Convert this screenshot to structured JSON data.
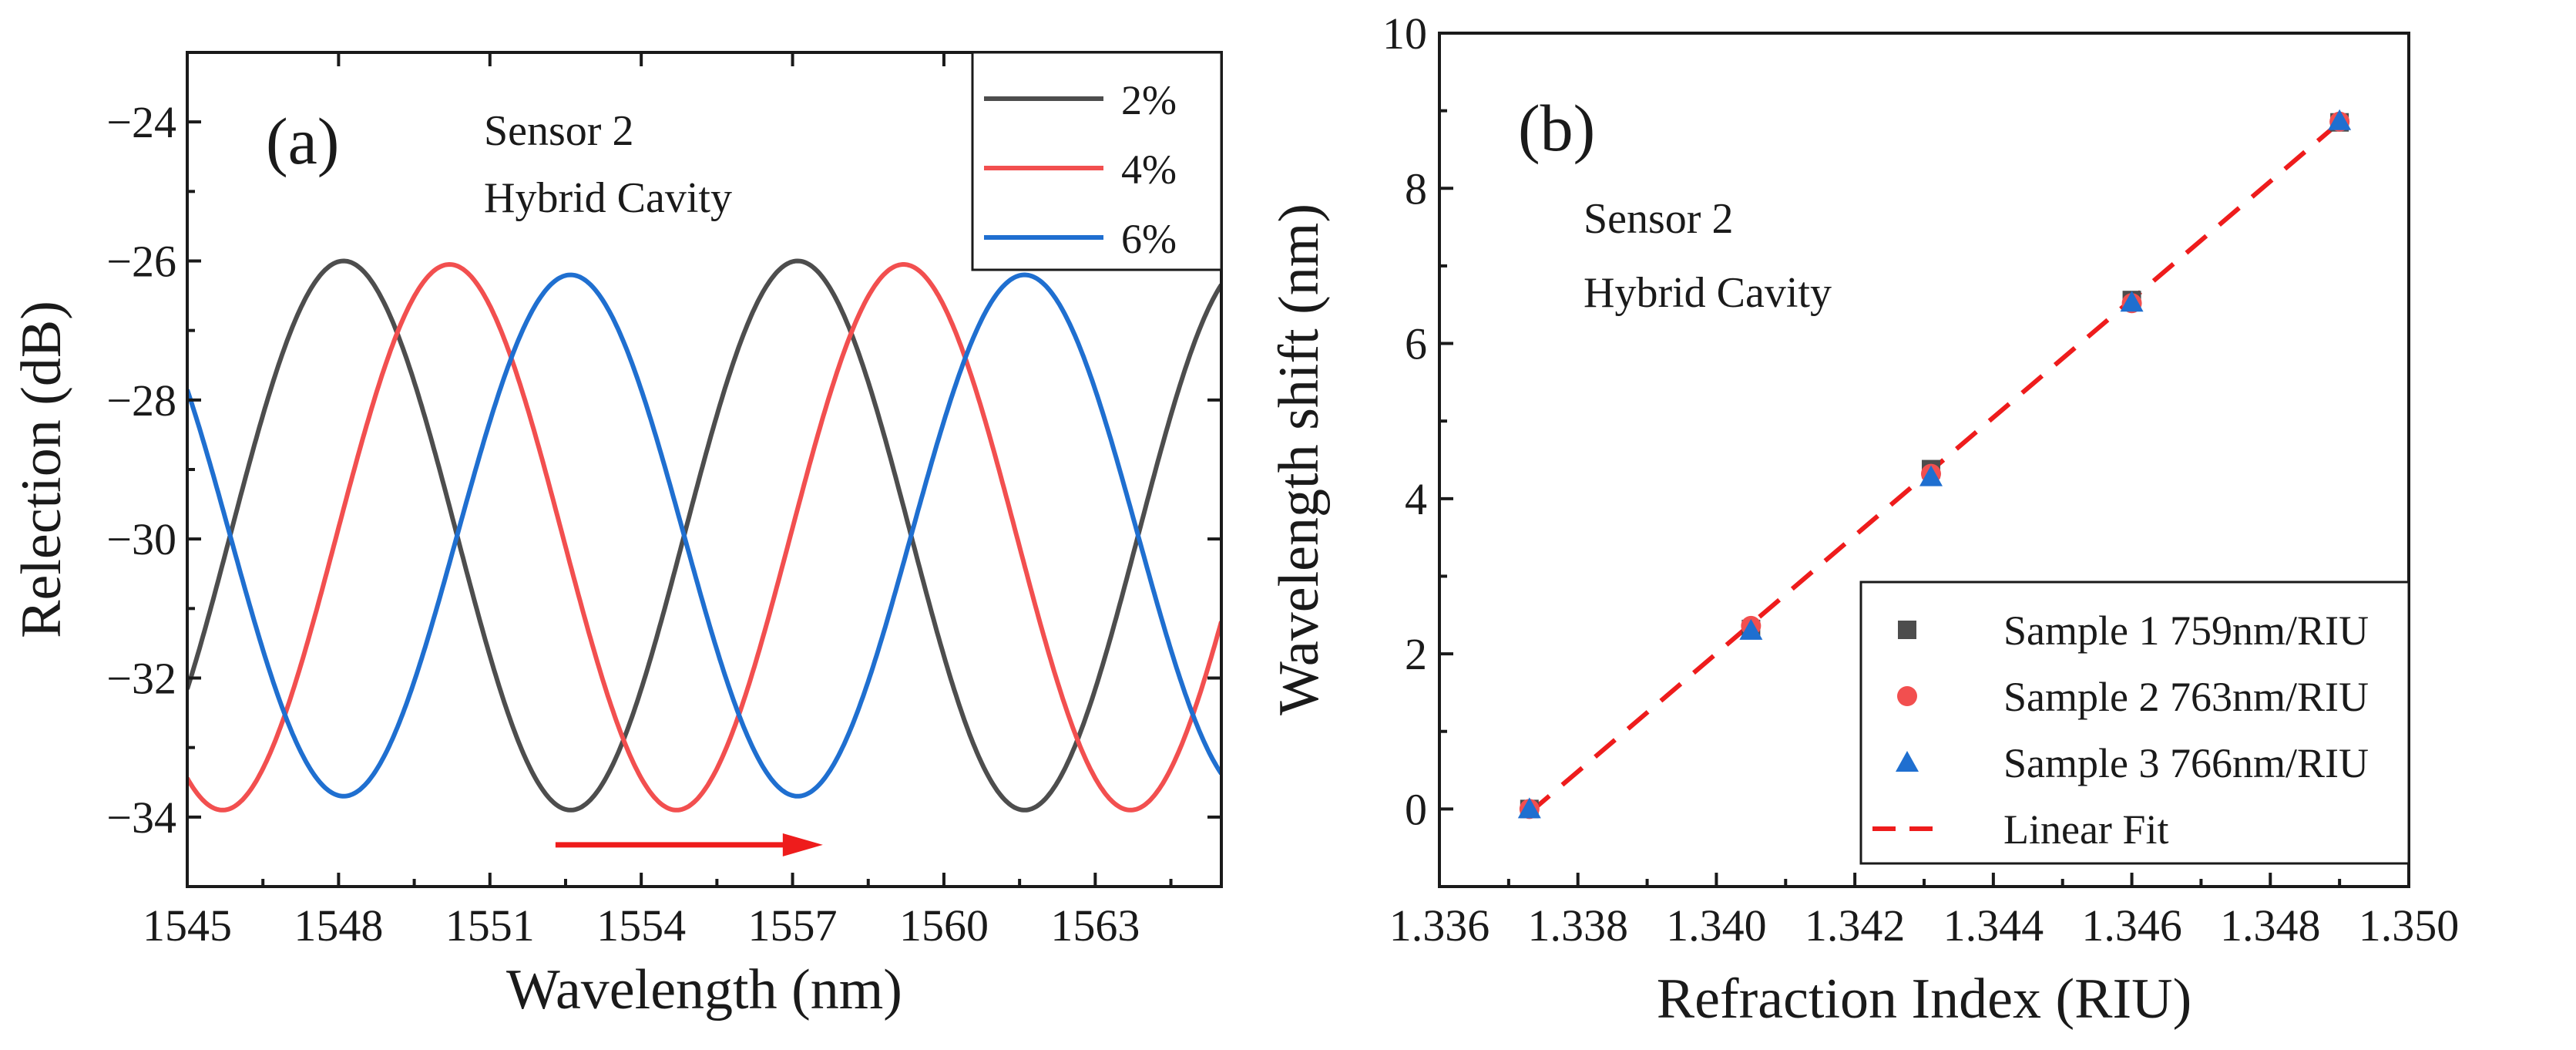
{
  "chart_data": [
    {
      "panel": "(a)",
      "type": "line",
      "xlabel": "Wavelength (nm)",
      "ylabel": "Relection (dB)",
      "xlim": [
        1545,
        1565.5
      ],
      "ylim": [
        -35,
        -23
      ],
      "xticks": [
        1545,
        1548,
        1551,
        1554,
        1557,
        1560,
        1563
      ],
      "yticks": [
        -34,
        -32,
        -30,
        -28,
        -26,
        -24
      ],
      "annotation": [
        "Sensor 2",
        "Hybrid Cavity"
      ],
      "legend_position": "top-right",
      "period_nm": 9.0,
      "series": [
        {
          "name": "2%",
          "color": "#4d4d4d",
          "peak_wavelengths_nm": [
            1548.1,
            1557.1
          ],
          "max_db": -26.0,
          "min_db": -33.9
        },
        {
          "name": "4%",
          "color": "#f24f4f",
          "peak_wavelengths_nm": [
            1550.2,
            1559.2
          ],
          "max_db": -26.05,
          "min_db": -33.9
        },
        {
          "name": "6%",
          "color": "#1f6fd0",
          "peak_wavelengths_nm": [
            1552.6,
            1561.6
          ],
          "max_db": -26.2,
          "min_db": -33.7
        }
      ],
      "arrow": {
        "from_x": 1552.3,
        "to_x": 1557.6,
        "y": -34.4,
        "color": "#ee1c1c"
      }
    },
    {
      "panel": "(b)",
      "type": "scatter",
      "xlabel": "Refraction Index (RIU)",
      "ylabel": "Wavelength shift (nm)",
      "xlim": [
        1.336,
        1.35
      ],
      "ylim": [
        -1,
        10
      ],
      "xticks": [
        "1.336",
        "1.338",
        "1.340",
        "1.342",
        "1.344",
        "1.346",
        "1.348",
        "1.350"
      ],
      "yticks": [
        0,
        2,
        4,
        6,
        8,
        10
      ],
      "annotation": [
        "Sensor 2",
        "Hybrid Cavity"
      ],
      "legend_position": "bottom-right",
      "series": [
        {
          "name": "Sample 1 759nm/RIU",
          "marker": "square",
          "color": "#4d4d4d",
          "x": [
            1.3373,
            1.3405,
            1.3431,
            1.346,
            1.349
          ],
          "y": [
            0,
            2.32,
            4.38,
            6.56,
            8.85
          ]
        },
        {
          "name": "Sample 2 763nm/RIU",
          "marker": "circle",
          "color": "#f24f4f",
          "x": [
            1.3373,
            1.3405,
            1.3431,
            1.346,
            1.349
          ],
          "y": [
            0,
            2.36,
            4.32,
            6.52,
            8.86
          ]
        },
        {
          "name": "Sample 3 766nm/RIU",
          "marker": "triangle",
          "color": "#1f6fd0",
          "x": [
            1.3373,
            1.3405,
            1.3431,
            1.346,
            1.349
          ],
          "y": [
            0,
            2.3,
            4.28,
            6.53,
            8.87
          ]
        },
        {
          "name": "Linear Fit",
          "line": "dashed",
          "color": "#ee1c1c",
          "x": [
            1.3373,
            1.349
          ],
          "y": [
            -0.05,
            8.85
          ]
        }
      ]
    }
  ]
}
